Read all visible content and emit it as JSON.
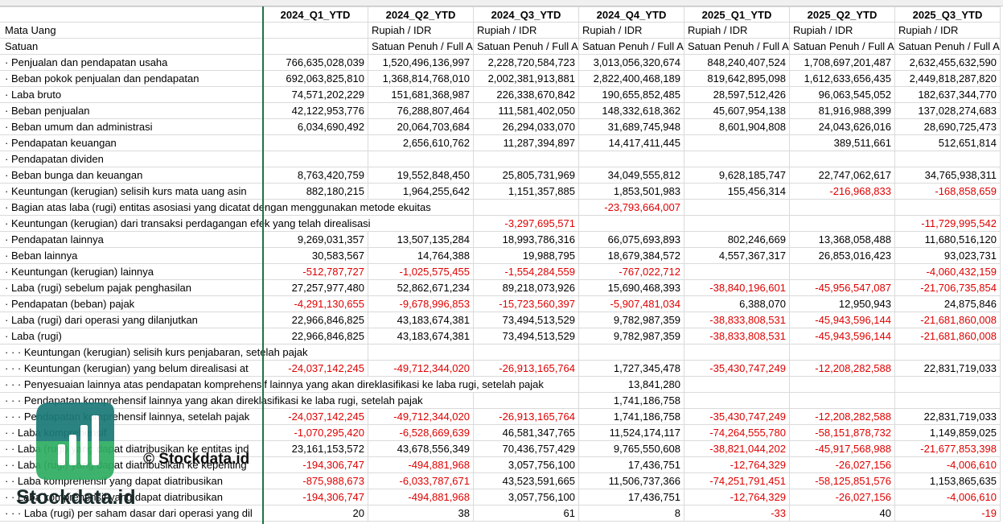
{
  "table": {
    "header": [
      "2024_Q1_YTD",
      "2024_Q2_YTD",
      "2024_Q3_YTD",
      "2024_Q4_YTD",
      "2025_Q1_YTD",
      "2025_Q2_YTD",
      "2025_Q3_YTD"
    ],
    "rows": [
      [
        "Mata Uang",
        null,
        "Rupiah / IDR",
        "Rupiah / IDR",
        "Rupiah / IDR",
        "Rupiah / IDR",
        "Rupiah / IDR",
        "Rupiah / IDR"
      ],
      [
        "Satuan",
        null,
        "Satuan Penuh / Full A",
        "Satuan Penuh / Full A",
        "Satuan Penuh / Full A",
        "Satuan Penuh / Full A",
        "Satuan Penuh / Full A",
        "Satuan Penuh / Full A"
      ],
      [
        "· Penjualan dan pendapatan usaha",
        "766,635,028,039",
        "1,520,496,136,997",
        "2,228,720,584,723",
        "3,013,056,320,674",
        "848,240,407,524",
        "1,708,697,201,487",
        "2,632,455,632,590"
      ],
      [
        "· Beban pokok penjualan dan pendapatan",
        "692,063,825,810",
        "1,368,814,768,010",
        "2,002,381,913,881",
        "2,822,400,468,189",
        "819,642,895,098",
        "1,612,633,656,435",
        "2,449,818,287,820"
      ],
      [
        "· Laba bruto",
        "74,571,202,229",
        "151,681,368,987",
        "226,338,670,842",
        "190,655,852,485",
        "28,597,512,426",
        "96,063,545,052",
        "182,637,344,770"
      ],
      [
        "· Beban penjualan",
        "42,122,953,776",
        "76,288,807,464",
        "111,581,402,050",
        "148,332,618,362",
        "45,607,954,138",
        "81,916,988,399",
        "137,028,274,683"
      ],
      [
        "· Beban umum dan administrasi",
        "6,034,690,492",
        "20,064,703,684",
        "26,294,033,070",
        "31,689,745,948",
        "8,601,904,808",
        "24,043,626,016",
        "28,690,725,473"
      ],
      [
        "· Pendapatan keuangan",
        null,
        "2,656,610,762",
        "11,287,394,897",
        "14,417,411,445",
        null,
        "389,511,661",
        "512,651,814"
      ],
      [
        "· Pendapatan dividen",
        null,
        null,
        null,
        null,
        null,
        null,
        null
      ],
      [
        "· Beban bunga dan keuangan",
        "8,763,420,759",
        "19,552,848,450",
        "25,805,731,969",
        "34,049,555,812",
        "9,628,185,747",
        "22,747,062,617",
        "34,765,938,311"
      ],
      [
        "· Keuntungan (kerugian) selisih kurs mata uang asin",
        "882,180,215",
        "1,964,255,642",
        "1,151,357,885",
        "1,853,501,983",
        "155,456,314",
        "-216,968,833",
        "-168,858,659"
      ],
      [
        "· Bagian atas laba (rugi) entitas asosiasi yang dicatat dengan menggunakan metode ekuitas",
        null,
        null,
        null,
        "-23,793,664,007",
        null,
        null,
        null
      ],
      [
        "· Keuntungan (kerugian) dari transaksi perdagangan efek yang telah direalisasi",
        null,
        null,
        "-3,297,695,571",
        null,
        null,
        null,
        "-11,729,995,542"
      ],
      [
        "· Pendapatan lainnya",
        "9,269,031,357",
        "13,507,135,284",
        "18,993,786,316",
        "66,075,693,893",
        "802,246,669",
        "13,368,058,488",
        "11,680,516,120"
      ],
      [
        "· Beban lainnya",
        "30,583,567",
        "14,764,388",
        "19,988,795",
        "18,679,384,572",
        "4,557,367,317",
        "26,853,016,423",
        "93,023,731"
      ],
      [
        "· Keuntungan (kerugian) lainnya",
        "-512,787,727",
        "-1,025,575,455",
        "-1,554,284,559",
        "-767,022,712",
        null,
        null,
        "-4,060,432,159"
      ],
      [
        "· Laba (rugi) sebelum pajak penghasilan",
        "27,257,977,480",
        "52,862,671,234",
        "89,218,073,926",
        "15,690,468,393",
        "-38,840,196,601",
        "-45,956,547,087",
        "-21,706,735,854"
      ],
      [
        "· Pendapatan (beban) pajak",
        "-4,291,130,655",
        "-9,678,996,853",
        "-15,723,560,397",
        "-5,907,481,034",
        "6,388,070",
        "12,950,943",
        "24,875,846"
      ],
      [
        "· Laba (rugi) dari operasi yang dilanjutkan",
        "22,966,846,825",
        "43,183,674,381",
        "73,494,513,529",
        "9,782,987,359",
        "-38,833,808,531",
        "-45,943,596,144",
        "-21,681,860,008"
      ],
      [
        "· Laba (rugi)",
        "22,966,846,825",
        "43,183,674,381",
        "73,494,513,529",
        "9,782,987,359",
        "-38,833,808,531",
        "-45,943,596,144",
        "-21,681,860,008"
      ],
      [
        "· · · Keuntungan (kerugian) selisih kurs penjabaran, setelah pajak",
        null,
        null,
        null,
        null,
        null,
        null,
        null
      ],
      [
        "· · · Keuntungan (kerugian) yang belum direalisasi at",
        "-24,037,142,245",
        "-49,712,344,020",
        "-26,913,165,764",
        "1,727,345,478",
        "-35,430,747,249",
        "-12,208,282,588",
        "22,831,719,033"
      ],
      [
        "· · · Penyesuaian lainnya atas pendapatan komprehensif lainnya yang akan direklasifikasi ke laba rugi, setelah pajak",
        null,
        null,
        null,
        "13,841,280",
        null,
        null,
        null
      ],
      [
        "· · · Pendapatan komprehensif lainnya yang akan direklasifikasi ke laba rugi, setelah pajak",
        null,
        null,
        null,
        "1,741,186,758",
        null,
        null,
        null
      ],
      [
        "· · · Pendapatan komprehensif lainnya, setelah pajak",
        "-24,037,142,245",
        "-49,712,344,020",
        "-26,913,165,764",
        "1,741,186,758",
        "-35,430,747,249",
        "-12,208,282,588",
        "22,831,719,033"
      ],
      [
        "· · Laba komprehensif",
        "-1,070,295,420",
        "-6,528,669,639",
        "46,581,347,765",
        "11,524,174,117",
        "-74,264,555,780",
        "-58,151,878,732",
        "1,149,859,025"
      ],
      [
        "· · Laba (rugi) yang dapat diatribusikan ke entitas ind",
        "23,161,153,572",
        "43,678,556,349",
        "70,436,757,429",
        "9,765,550,608",
        "-38,821,044,202",
        "-45,917,568,988",
        "-21,677,853,398"
      ],
      [
        "· · Laba (rugi) yang dapat diatribusikan ke kepenting",
        "-194,306,747",
        "-494,881,968",
        "3,057,756,100",
        "17,436,751",
        "-12,764,329",
        "-26,027,156",
        "-4,006,610"
      ],
      [
        "· · Laba komprehensif yang dapat diatribusikan",
        "-875,988,673",
        "-6,033,787,671",
        "43,523,591,665",
        "11,506,737,366",
        "-74,251,791,451",
        "-58,125,851,576",
        "1,153,865,635"
      ],
      [
        "· · Laba komprehensif yang dapat diatribusikan",
        "-194,306,747",
        "-494,881,968",
        "3,057,756,100",
        "17,436,751",
        "-12,764,329",
        "-26,027,156",
        "-4,006,610"
      ],
      [
        "· · · Laba (rugi) per saham dasar dari operasi yang dil",
        "20",
        "38",
        "61",
        "8",
        "-33",
        "40",
        "-19"
      ]
    ]
  },
  "watermark": {
    "text": "© Stockdata.id",
    "brand": "Stockdata.id"
  }
}
